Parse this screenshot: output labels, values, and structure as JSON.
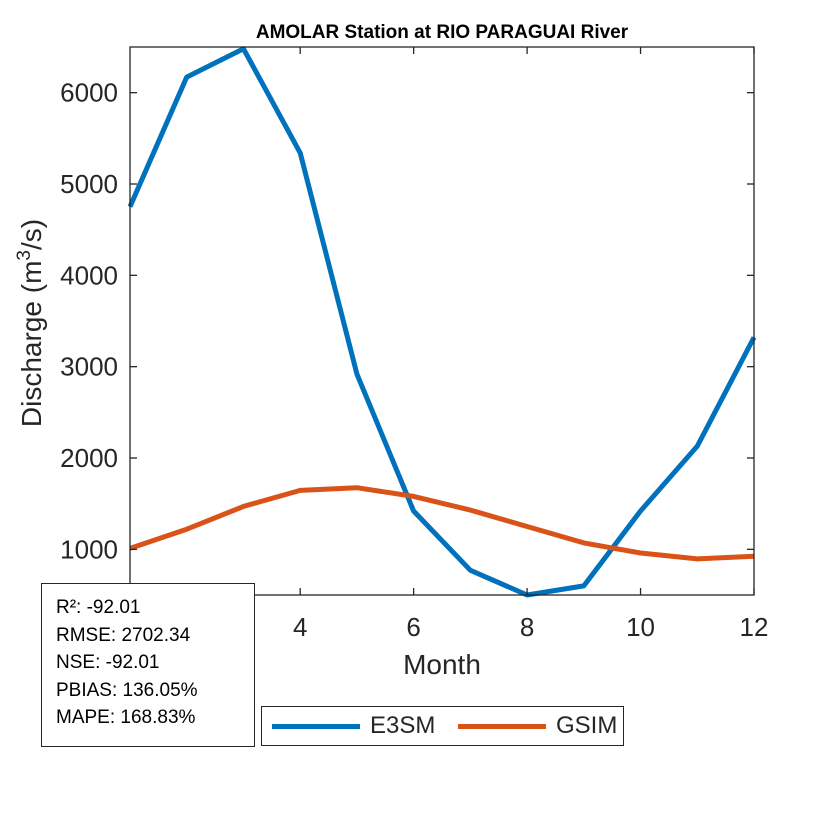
{
  "chart_data": {
    "type": "line",
    "title": "AMOLAR  Station at  RIO PARAGUAI  River",
    "xlabel": "Month",
    "ylabel_base": "Discharge (m",
    "ylabel_sup": "3",
    "ylabel_tail": "/s)",
    "x": [
      1,
      2,
      3,
      4,
      5,
      6,
      7,
      8,
      9,
      10,
      11,
      12
    ],
    "xlim": [
      1,
      12
    ],
    "ylim": [
      500,
      6500
    ],
    "xticks": [
      4,
      6,
      8,
      10,
      12
    ],
    "yticks": [
      1000,
      2000,
      3000,
      4000,
      5000,
      6000
    ],
    "series": [
      {
        "name": "E3SM",
        "color": "#0072BD",
        "values": [
          4750,
          6170,
          6480,
          5340,
          2920,
          1420,
          770,
          500,
          600,
          1420,
          2130,
          3320
        ]
      },
      {
        "name": "GSIM",
        "color": "#D95319",
        "values": [
          1010,
          1220,
          1470,
          1645,
          1675,
          1580,
          1430,
          1250,
          1070,
          960,
          895,
          925
        ]
      }
    ],
    "grid": false,
    "legend_position": "bottom"
  },
  "stats": {
    "lines": [
      "R²: -92.01",
      "RMSE: 2702.34",
      "NSE: -92.01",
      "PBIAS: 136.05%",
      "MAPE: 168.83%"
    ]
  }
}
